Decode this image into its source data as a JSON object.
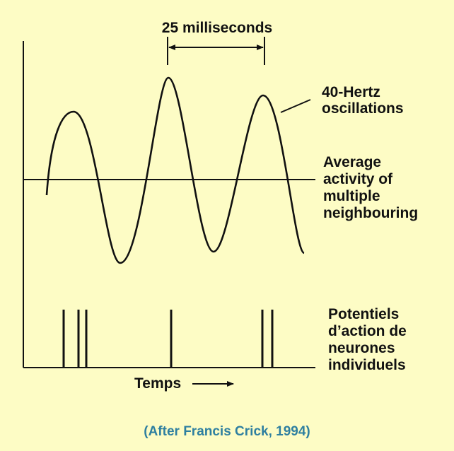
{
  "colors": {
    "background": "#fdfcc5",
    "ink": "#111111",
    "caption": "#2e7fa0"
  },
  "labels": {
    "period": "25 milliseconds",
    "oscillation": [
      "40-Hertz",
      "oscillations"
    ],
    "average": [
      "Average",
      "activity of",
      "multiple",
      "neighbouring"
    ],
    "potentials": [
      "Potentiels",
      "d’action de",
      "neurones",
      "individuels"
    ],
    "time_axis": "Temps",
    "caption": "(After Francis Crick, 1994)"
  },
  "icons": {
    "time_arrow": "right-arrow-icon",
    "period_arrow": "double-headed-arrow-icon"
  }
}
